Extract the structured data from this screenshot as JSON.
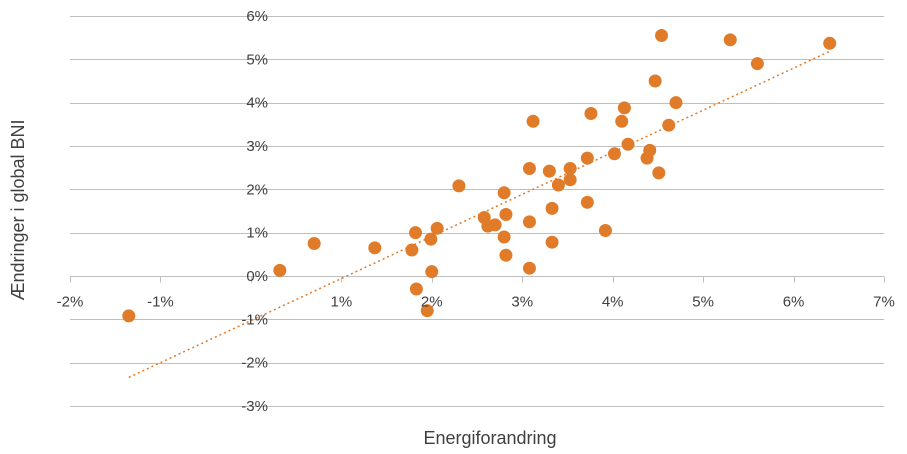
{
  "chart_data": {
    "type": "scatter",
    "title": "",
    "xlabel": "Energiforandring",
    "ylabel": "Ændringer i global BNI",
    "xlim": [
      -2,
      7
    ],
    "ylim": [
      -3,
      6
    ],
    "x_ticks": [
      -2,
      -1,
      0,
      1,
      2,
      3,
      4,
      5,
      6,
      7
    ],
    "x_tick_labels": [
      "-2%",
      "-1%",
      "",
      "1%",
      "2%",
      "3%",
      "4%",
      "5%",
      "6%",
      "7%"
    ],
    "y_ticks": [
      -3,
      -2,
      -1,
      0,
      1,
      2,
      3,
      4,
      5,
      6
    ],
    "y_tick_labels": [
      "-3%",
      "-2%",
      "-1%",
      "0%",
      "1%",
      "2%",
      "3%",
      "4%",
      "5%",
      "6%"
    ],
    "grid": "horizontal",
    "colors": {
      "points": "#e07b2a",
      "trendline": "#e07b2a",
      "gridlines": "#bfbfbf",
      "text": "#404040"
    },
    "series": [
      {
        "points": [
          [
            -1.35,
            -0.92
          ],
          [
            0.32,
            0.13
          ],
          [
            0.7,
            0.75
          ],
          [
            1.37,
            0.65
          ],
          [
            1.78,
            0.6
          ],
          [
            1.82,
            1.0
          ],
          [
            1.83,
            -0.3
          ],
          [
            1.95,
            -0.8
          ],
          [
            1.99,
            0.85
          ],
          [
            2.0,
            0.1
          ],
          [
            2.06,
            1.1
          ],
          [
            2.3,
            2.08
          ],
          [
            2.58,
            1.35
          ],
          [
            2.62,
            1.15
          ],
          [
            2.7,
            1.18
          ],
          [
            2.8,
            1.92
          ],
          [
            2.8,
            0.9
          ],
          [
            2.82,
            1.42
          ],
          [
            2.82,
            0.48
          ],
          [
            3.08,
            2.48
          ],
          [
            3.08,
            1.25
          ],
          [
            3.08,
            0.18
          ],
          [
            3.12,
            3.57
          ],
          [
            3.3,
            2.42
          ],
          [
            3.33,
            1.56
          ],
          [
            3.33,
            0.78
          ],
          [
            3.4,
            2.1
          ],
          [
            3.53,
            2.22
          ],
          [
            3.53,
            2.48
          ],
          [
            3.72,
            2.72
          ],
          [
            3.72,
            1.7
          ],
          [
            3.76,
            3.75
          ],
          [
            3.92,
            1.05
          ],
          [
            4.02,
            2.82
          ],
          [
            4.1,
            3.57
          ],
          [
            4.13,
            3.88
          ],
          [
            4.17,
            3.04
          ],
          [
            4.38,
            2.72
          ],
          [
            4.41,
            2.9
          ],
          [
            4.47,
            4.5
          ],
          [
            4.51,
            2.38
          ],
          [
            4.54,
            5.55
          ],
          [
            4.62,
            3.48
          ],
          [
            4.7,
            4.0
          ],
          [
            5.3,
            5.45
          ],
          [
            5.6,
            4.9
          ],
          [
            6.4,
            5.37
          ]
        ]
      }
    ],
    "trendline": {
      "style": "dotted",
      "x_range": [
        -1.35,
        6.4
      ]
    }
  }
}
